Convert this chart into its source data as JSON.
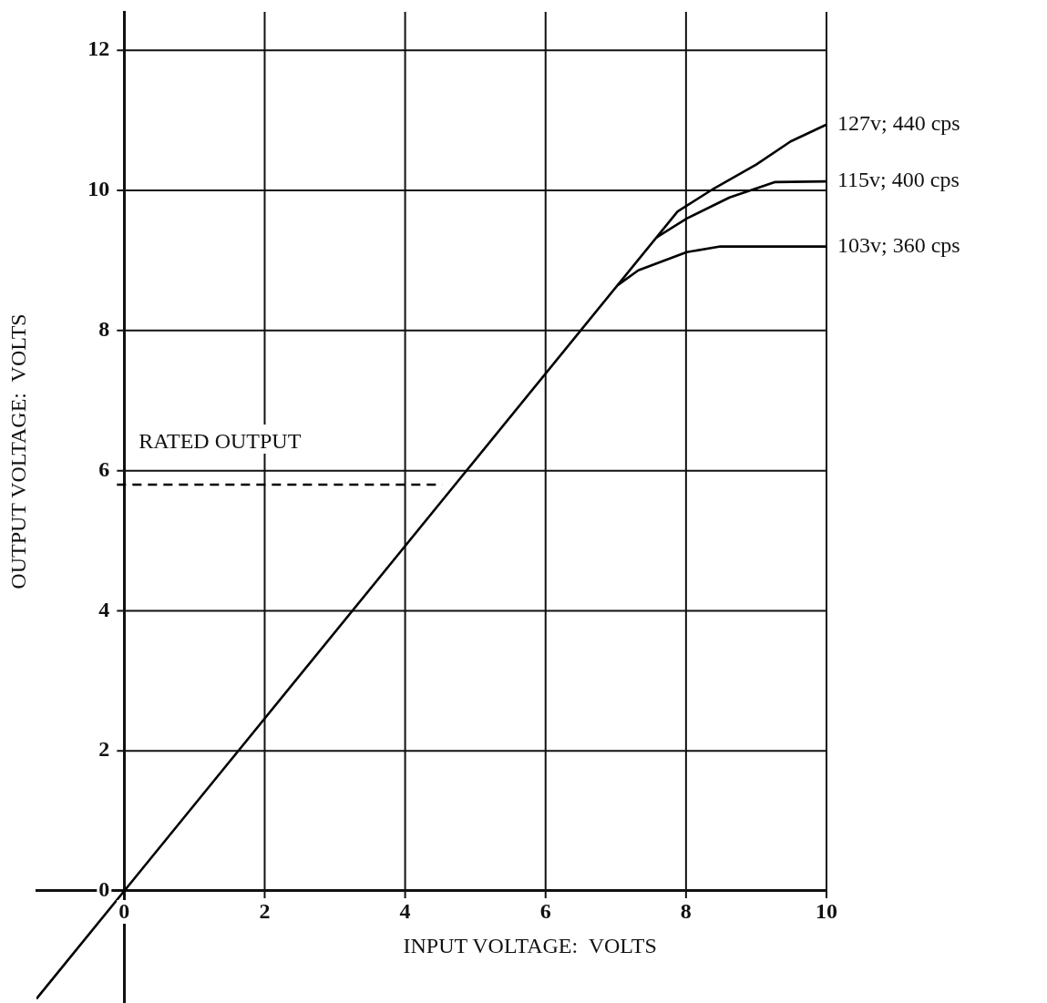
{
  "chart_data": {
    "type": "line",
    "xlabel": "INPUT VOLTAGE:  VOLTS",
    "ylabel": "OUTPUT VOLTAGE:  VOLTS",
    "xlim": [
      -1.25,
      10
    ],
    "ylim": [
      -1.6,
      12.55
    ],
    "xticks": [
      0,
      2,
      4,
      6,
      8,
      10
    ],
    "yticks": [
      0,
      2,
      4,
      6,
      8,
      10,
      12
    ],
    "grid": true,
    "legend": false,
    "marker": "none",
    "series": [
      {
        "name": "127v; 440 cps",
        "color": "#000000",
        "x": [
          -1.25,
          0,
          7.88,
          8.4,
          9.0,
          9.49,
          10
        ],
        "values": [
          -1.54,
          0,
          9.7,
          10.03,
          10.37,
          10.7,
          10.94
        ]
      },
      {
        "name": "115v; 400 cps",
        "color": "#000000",
        "x": [
          7.58,
          8.01,
          8.62,
          9.27,
          10
        ],
        "values": [
          9.33,
          9.6,
          9.9,
          10.12,
          10.13
        ]
      },
      {
        "name": "103v; 360 cps",
        "color": "#000000",
        "x": [
          7.03,
          7.32,
          8.01,
          8.49,
          10
        ],
        "values": [
          8.65,
          8.86,
          9.12,
          9.2,
          9.2
        ]
      }
    ],
    "ref_lines": [
      {
        "axis": "y",
        "value": 5.8,
        "label": "RATED OUTPUT",
        "color": "#000000",
        "line_style": "dashed"
      }
    ]
  }
}
